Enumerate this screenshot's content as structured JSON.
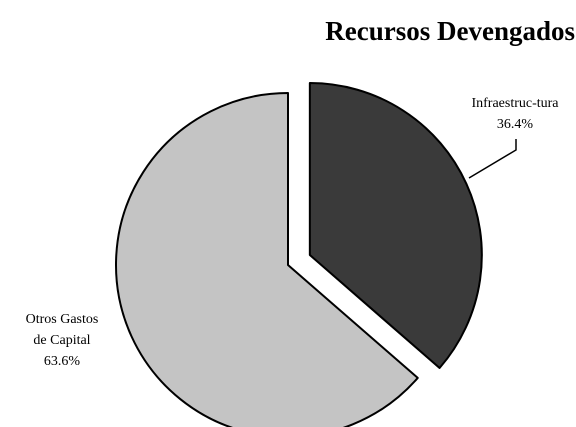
{
  "chart_data": {
    "type": "pie",
    "title": "Recursos Devengados",
    "slices": [
      {
        "label_lines": [
          "Infraestruc-tura"
        ],
        "value_label": "36.4%",
        "value": 36.4,
        "color": "#3a3a3a",
        "exploded": true
      },
      {
        "label_lines": [
          "Otros Gastos",
          "de Capital"
        ],
        "value_label": "63.6%",
        "value": 63.6,
        "color": "#c4c4c4",
        "exploded": false
      }
    ],
    "start_angle_deg": 0,
    "direction": "clockwise",
    "legend": "none"
  }
}
